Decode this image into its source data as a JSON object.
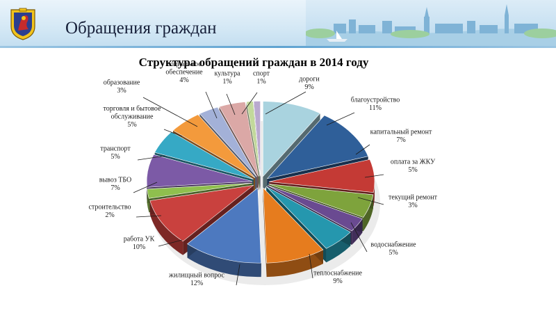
{
  "header": {
    "title": "Обращения граждан",
    "emblem_icon": "city-coat-of-arms-icon",
    "banner_image": "city-skyline-illustration"
  },
  "chart_data": {
    "type": "pie",
    "title": "Структура  обращений граждан в 2014 году",
    "style": "3d-exploded",
    "unit": "%",
    "slices": [
      {
        "name": "дороги",
        "value": 9,
        "color": "#a9d3df"
      },
      {
        "name": "благоустройство",
        "value": 11,
        "color": "#2f5f99"
      },
      {
        "name": "капитальный ремонт",
        "value": 7,
        "color": "#c43a35"
      },
      {
        "name": "оплата за ЖКУ",
        "value": 5,
        "color": "#7ea33c"
      },
      {
        "name": "текущий ремонт",
        "value": 3,
        "color": "#6a4a91"
      },
      {
        "name": "водоснабжение",
        "value": 5,
        "color": "#2597ae"
      },
      {
        "name": "теплоснабжение",
        "value": 9,
        "color": "#e67c1e"
      },
      {
        "name": "жилищный вопрос",
        "value": 12,
        "color": "#4d79bf"
      },
      {
        "name": "работа УК",
        "value": 10,
        "color": "#c9413e"
      },
      {
        "name": "строительство",
        "value": 2,
        "color": "#8fbf4e"
      },
      {
        "name": "вывоз ТБО",
        "value": 7,
        "color": "#7c5aa6"
      },
      {
        "name": "транспорт",
        "value": 5,
        "color": "#36a9c5"
      },
      {
        "name": "торговля и бытовое обслуживание",
        "value": 5,
        "color": "#f39a3c"
      },
      {
        "name": "образование",
        "value": 3,
        "color": "#a3b1d8"
      },
      {
        "name": "социальное обеспечение",
        "value": 4,
        "color": "#dba8a6"
      },
      {
        "name": "культура",
        "value": 1,
        "color": "#c2d99b"
      },
      {
        "name": "спорт",
        "value": 1,
        "color": "#b9a9cf"
      }
    ],
    "labels": [
      {
        "lines": [
          "дороги"
        ],
        "pct": "9%"
      },
      {
        "lines": [
          "благоустройство"
        ],
        "pct": "11%"
      },
      {
        "lines": [
          "капитальный ремонт"
        ],
        "pct": "7%"
      },
      {
        "lines": [
          "оплата за ЖКУ"
        ],
        "pct": "5%"
      },
      {
        "lines": [
          "текущий ремонт"
        ],
        "pct": "3%"
      },
      {
        "lines": [
          "водоснабжение"
        ],
        "pct": "5%"
      },
      {
        "lines": [
          "теплоснабжение"
        ],
        "pct": "9%"
      },
      {
        "lines": [
          "жилищный вопрос"
        ],
        "pct": "12%"
      },
      {
        "lines": [
          "работа УК"
        ],
        "pct": "10%"
      },
      {
        "lines": [
          "строительство"
        ],
        "pct": "2%"
      },
      {
        "lines": [
          "вывоз ТБО"
        ],
        "pct": "7%"
      },
      {
        "lines": [
          "транспорт"
        ],
        "pct": "5%"
      },
      {
        "lines": [
          "торговля и бытовое",
          "обслуживание"
        ],
        "pct": "5%"
      },
      {
        "lines": [
          "образование"
        ],
        "pct": "3%"
      },
      {
        "lines": [
          "социальное",
          "обеспечение"
        ],
        "pct": "4%"
      },
      {
        "lines": [
          "культура"
        ],
        "pct": "1%"
      },
      {
        "lines": [
          "спорт"
        ],
        "pct": "1%"
      }
    ]
  }
}
